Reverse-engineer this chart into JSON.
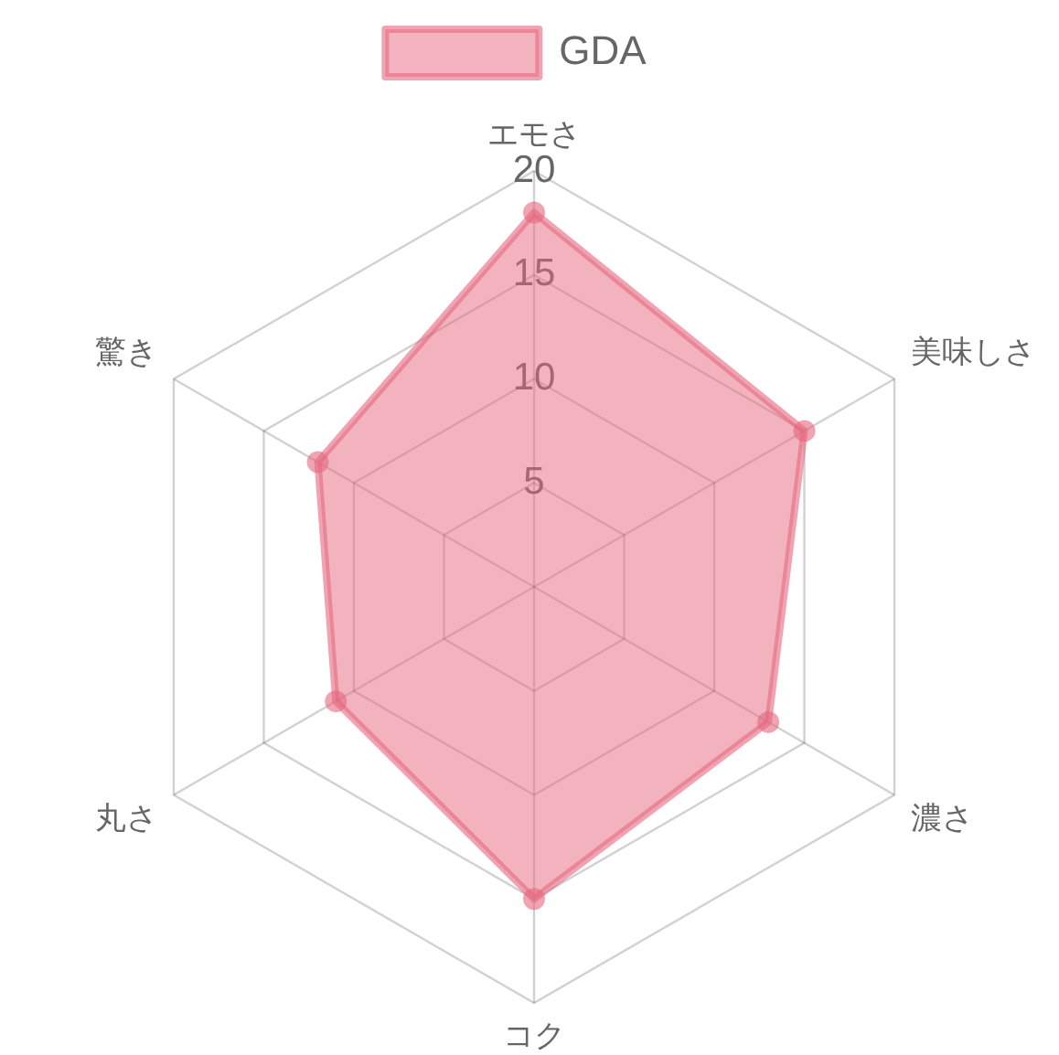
{
  "chart_data": {
    "type": "radar",
    "categories": [
      "エモさ",
      "美味しさ",
      "濃さ",
      "コク",
      "丸さ",
      "驚き"
    ],
    "series": [
      {
        "name": "GDA",
        "color": "#e6687f",
        "values": [
          18,
          15,
          13,
          15,
          11,
          12
        ]
      }
    ],
    "ylim": [
      0,
      20
    ],
    "yticks": [
      5,
      10,
      15,
      20
    ],
    "grid": true,
    "legend": "top",
    "marker": "circle",
    "line_style": "solid"
  }
}
